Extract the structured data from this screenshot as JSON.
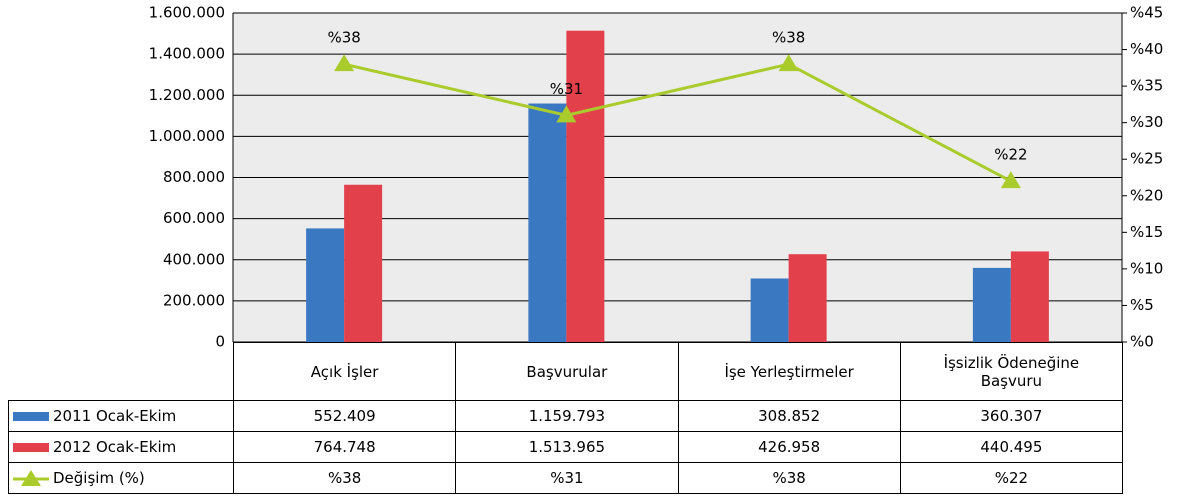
{
  "chart_data": {
    "type": "bar",
    "categories": [
      "Açık İşler",
      "Başvurular",
      "İşe Yerleştirmeler",
      "İşsizlik Ödeneğine Başvuru"
    ],
    "series": [
      {
        "name": "2011 Ocak-Ekim",
        "color": "#3b78c2",
        "values": [
          552409,
          1159793,
          308852,
          360307
        ],
        "value_labels": [
          "552.409",
          "1.159.793",
          "308.852",
          "360.307"
        ]
      },
      {
        "name": "2012 Ocak-Ekim",
        "color": "#e2414b",
        "values": [
          764748,
          1513965,
          426958,
          440495
        ],
        "value_labels": [
          "764.748",
          "1.513.965",
          "426.958",
          "440.495"
        ]
      },
      {
        "name": "Değişim (%)",
        "type": "line",
        "axis": "y2",
        "color": "#a9cc2c",
        "values": [
          38,
          31,
          38,
          22
        ],
        "value_labels": [
          "%38",
          "%31",
          "%38",
          "%22"
        ]
      }
    ],
    "ylim": [
      0,
      1600000
    ],
    "yticks": [
      0,
      {
        "value": 200000,
        "label": "200.000"
      },
      {
        "value": 400000,
        "label": "400.000"
      },
      {
        "value": 600000,
        "label": "600.000"
      },
      {
        "value": 800000,
        "label": "800.000"
      },
      {
        "value": 1000000,
        "label": "1.000.000"
      },
      {
        "value": 1200000,
        "label": "1.200.000"
      },
      {
        "value": 1400000,
        "label": "1.400.000"
      },
      {
        "value": 1600000,
        "label": "1.600.000"
      }
    ],
    "y2lim": [
      0,
      45
    ],
    "y2ticks": [
      {
        "value": 0,
        "label": "%0"
      },
      {
        "value": 5,
        "label": "%5"
      },
      {
        "value": 10,
        "label": "%10"
      },
      {
        "value": 15,
        "label": "%15"
      },
      {
        "value": 20,
        "label": "%20"
      },
      {
        "value": 25,
        "label": "%25"
      },
      {
        "value": 30,
        "label": "%30"
      },
      {
        "value": 35,
        "label": "%35"
      },
      {
        "value": 40,
        "label": "%40"
      },
      {
        "value": 45,
        "label": "%45"
      }
    ],
    "grid": true
  }
}
